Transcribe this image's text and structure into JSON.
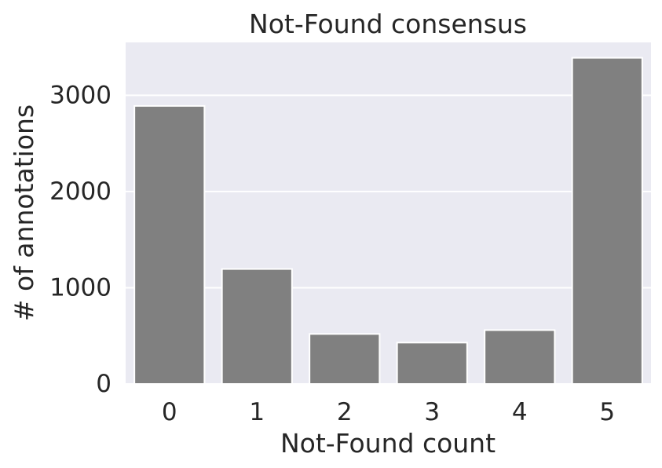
{
  "chart_data": {
    "type": "bar",
    "title": "Not-Found consensus",
    "xlabel": "Not-Found count",
    "ylabel": "# of annotations",
    "categories": [
      "0",
      "1",
      "2",
      "3",
      "4",
      "5"
    ],
    "values": [
      2890,
      1195,
      520,
      430,
      560,
      3390
    ],
    "ylim": [
      0,
      3550
    ],
    "yticks": [
      0,
      1000,
      2000,
      3000
    ],
    "ytick_labels": [
      "0",
      "1000",
      "2000",
      "3000"
    ],
    "grid": true,
    "legend": "none",
    "colors": {
      "bar": "#808080",
      "plot_background": "#eaeaf2",
      "grid": "#ffffff",
      "text": "#262626"
    }
  }
}
